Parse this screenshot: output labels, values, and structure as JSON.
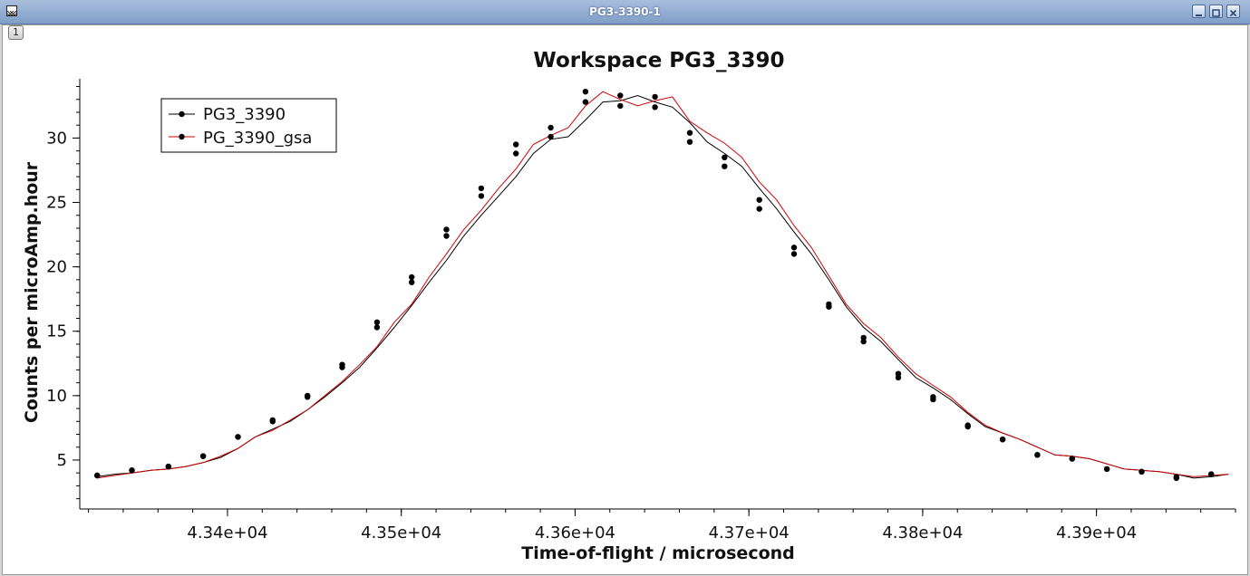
{
  "window": {
    "title": "PG3-3390-1",
    "plot_index": "1"
  },
  "chart_data": {
    "type": "line",
    "title": "Workspace PG3_3390",
    "xlabel": "Time-of-flight / microsecond",
    "ylabel": "Counts per microAmp.hour",
    "xlim": [
      43315,
      43980
    ],
    "ylim": [
      1.2,
      34.6
    ],
    "x_ticks": [
      {
        "value": 43400,
        "label": "4.34e+04"
      },
      {
        "value": 43500,
        "label": "4.35e+04"
      },
      {
        "value": 43600,
        "label": "4.36e+04"
      },
      {
        "value": 43700,
        "label": "4.37e+04"
      },
      {
        "value": 43800,
        "label": "4.38e+04"
      },
      {
        "value": 43900,
        "label": "4.39e+04"
      }
    ],
    "y_ticks": [
      {
        "value": 5,
        "label": "5"
      },
      {
        "value": 10,
        "label": "10"
      },
      {
        "value": 15,
        "label": "15"
      },
      {
        "value": 20,
        "label": "20"
      },
      {
        "value": 25,
        "label": "25"
      },
      {
        "value": 30,
        "label": "30"
      }
    ],
    "grid": false,
    "legend_position": "top-left",
    "x": [
      43325,
      43335,
      43345,
      43356,
      43366,
      43376,
      43386,
      43396,
      43406,
      43416,
      43426,
      43436,
      43446,
      43456,
      43466,
      43476,
      43486,
      43496,
      43506,
      43516,
      43526,
      43536,
      43546,
      43556,
      43566,
      43576,
      43586,
      43596,
      43606,
      43616,
      43626,
      43636,
      43646,
      43656,
      43666,
      43676,
      43686,
      43696,
      43706,
      43716,
      43726,
      43736,
      43746,
      43756,
      43766,
      43776,
      43786,
      43796,
      43806,
      43816,
      43826,
      43836,
      43846,
      43856,
      43866,
      43876,
      43886,
      43896,
      43906,
      43916,
      43926,
      43936,
      43946,
      43956,
      43966,
      43976
    ],
    "series": [
      {
        "name": "PG3_3390",
        "color": "#000000",
        "values": [
          3.7,
          3.9,
          4.0,
          4.2,
          4.3,
          4.5,
          4.8,
          5.2,
          5.9,
          6.8,
          7.4,
          8.0,
          8.9,
          9.9,
          11.0,
          12.2,
          13.7,
          15.3,
          17.0,
          18.8,
          20.5,
          22.4,
          24.0,
          25.5,
          27.0,
          28.8,
          29.9,
          30.1,
          31.4,
          32.8,
          32.9,
          33.3,
          32.8,
          32.4,
          31.2,
          29.7,
          28.8,
          27.8,
          26.1,
          24.5,
          22.7,
          21.0,
          19.0,
          16.9,
          15.3,
          14.2,
          12.8,
          11.4,
          10.6,
          9.7,
          8.6,
          7.6,
          7.1,
          6.6,
          6.0,
          5.4,
          5.3,
          5.1,
          4.7,
          4.3,
          4.2,
          4.1,
          3.9,
          3.6,
          3.7,
          3.9
        ]
      },
      {
        "name": "PG_3390_gsa",
        "color": "#cc0000",
        "values": [
          3.6,
          3.8,
          4.0,
          4.2,
          4.3,
          4.5,
          4.8,
          5.3,
          5.9,
          6.8,
          7.3,
          8.1,
          8.9,
          10.0,
          11.1,
          12.4,
          13.8,
          15.7,
          17.1,
          19.2,
          21.0,
          22.9,
          24.4,
          26.1,
          27.6,
          29.5,
          30.2,
          30.8,
          32.5,
          33.6,
          33.0,
          32.5,
          32.9,
          33.2,
          31.3,
          30.4,
          29.6,
          28.5,
          26.6,
          25.2,
          23.2,
          21.5,
          19.3,
          17.1,
          15.6,
          14.5,
          13.0,
          11.7,
          10.8,
          9.9,
          8.7,
          7.7,
          7.1,
          6.6,
          6.0,
          5.4,
          5.3,
          5.1,
          4.7,
          4.3,
          4.2,
          4.1,
          3.9,
          3.7,
          3.8,
          3.9
        ]
      }
    ],
    "markers": {
      "x": [
        43325,
        43345,
        43366,
        43386,
        43406,
        43426,
        43446,
        43466,
        43486,
        43506,
        43526,
        43546,
        43566,
        43586,
        43606,
        43626,
        43646,
        43666,
        43686,
        43706,
        43726,
        43746,
        43766,
        43786,
        43806,
        43826,
        43846,
        43866,
        43886,
        43906,
        43926,
        43946,
        43966
      ],
      "series0": [
        3.8,
        4.2,
        4.5,
        5.3,
        6.8,
        8.0,
        9.9,
        12.2,
        15.3,
        18.8,
        22.4,
        25.5,
        28.8,
        30.1,
        32.8,
        33.3,
        32.4,
        29.7,
        27.8,
        24.5,
        21.0,
        16.9,
        14.2,
        11.4,
        9.7,
        7.6,
        6.6,
        5.4,
        5.1,
        4.3,
        4.1,
        3.6,
        3.9
      ],
      "series1": [
        3.8,
        4.2,
        4.5,
        5.3,
        6.8,
        8.1,
        10.0,
        12.4,
        15.7,
        19.2,
        22.9,
        26.1,
        29.5,
        30.8,
        33.6,
        32.5,
        33.2,
        30.4,
        28.5,
        25.2,
        21.5,
        17.1,
        14.5,
        11.7,
        9.9,
        7.7,
        6.6,
        5.4,
        5.1,
        4.3,
        4.1,
        3.7,
        3.9
      ]
    }
  }
}
